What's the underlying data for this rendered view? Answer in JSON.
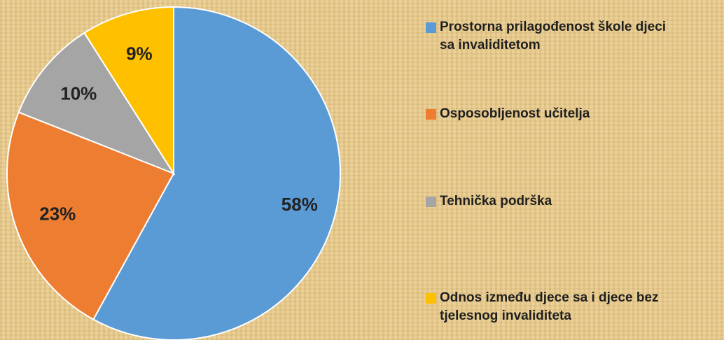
{
  "chart_data": {
    "type": "pie",
    "categories": [
      "Prostorna prilagođenost škole djeci sa invaliditetom",
      "Osposobljenost učitelja",
      "Tehnička podrška",
      "Odnos između djece sa i djece bez tjelesnog invaliditeta"
    ],
    "values": [
      58,
      23,
      10,
      9
    ],
    "value_labels": [
      "58%",
      "23%",
      "10%",
      "9%"
    ],
    "colors": [
      "#5b9bd5",
      "#ed7d31",
      "#a5a5a5",
      "#ffc000"
    ],
    "legend": "right"
  }
}
